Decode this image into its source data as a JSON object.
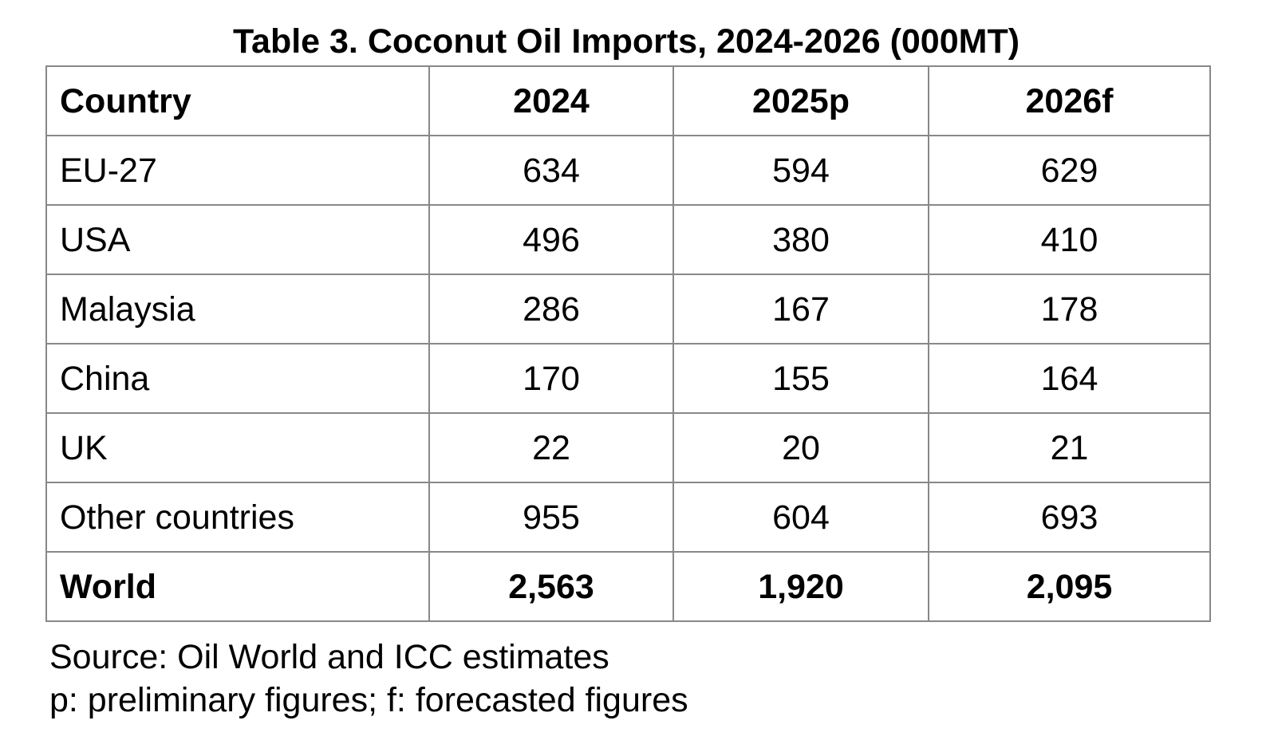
{
  "title": "Table 3. Coconut Oil Imports, 2024-2026 (000MT)",
  "table": {
    "headers": [
      "Country",
      "2024",
      "2025p",
      "2026f"
    ],
    "rows": [
      {
        "country": "EU-27",
        "v2024": "634",
        "v2025": "594",
        "v2026": "629"
      },
      {
        "country": "USA",
        "v2024": "496",
        "v2025": "380",
        "v2026": "410"
      },
      {
        "country": "Malaysia",
        "v2024": "286",
        "v2025": "167",
        "v2026": "178"
      },
      {
        "country": "China",
        "v2024": "170",
        "v2025": "155",
        "v2026": "164"
      },
      {
        "country": "UK",
        "v2024": "22",
        "v2025": "20",
        "v2026": "21"
      },
      {
        "country": "Other countries",
        "v2024": "955",
        "v2025": "604",
        "v2026": "693"
      }
    ],
    "total": {
      "country": "World",
      "v2024": "2,563",
      "v2025": "1,920",
      "v2026": "2,095"
    }
  },
  "notes": {
    "source": "Source: Oil World and ICC estimates",
    "legend": "p: preliminary figures; f: forecasted figures"
  }
}
